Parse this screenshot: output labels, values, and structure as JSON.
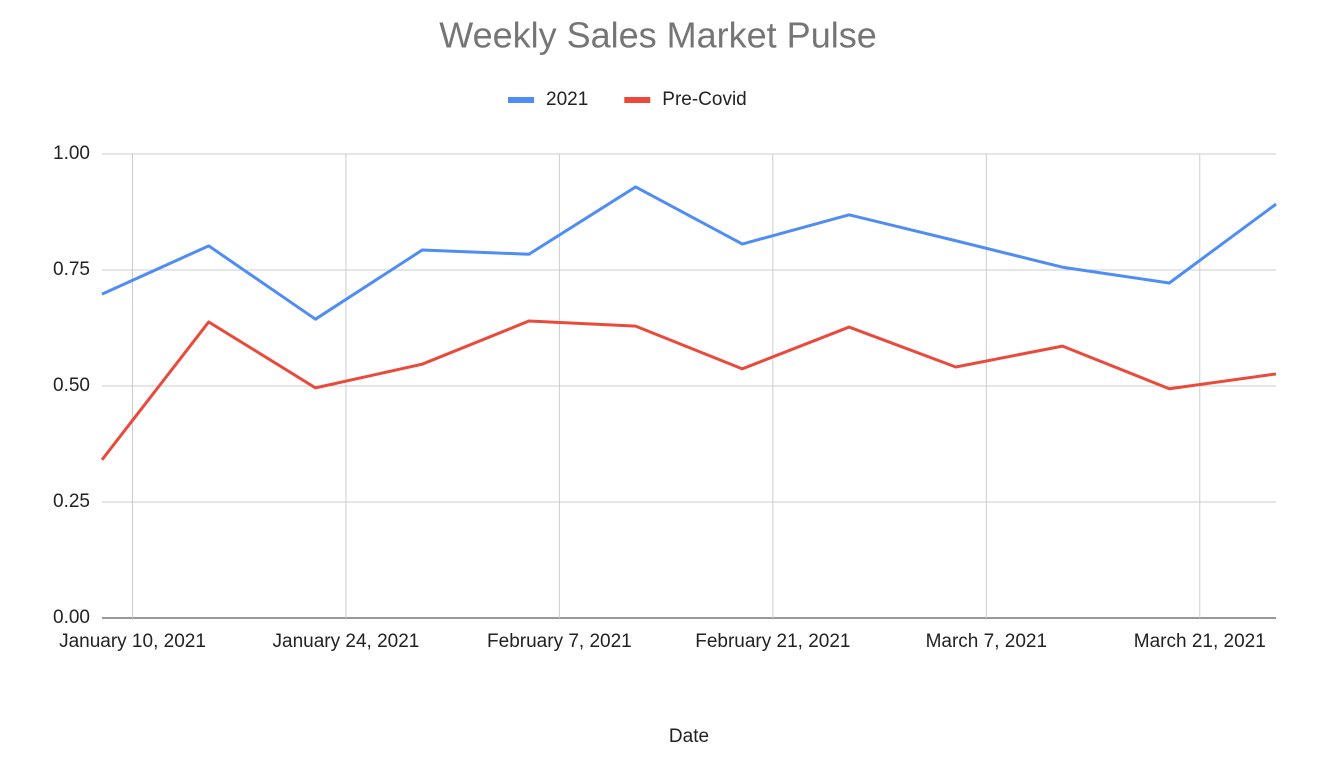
{
  "chart_data": {
    "type": "line",
    "title": "Weekly Sales Market Pulse",
    "x_label": "Date",
    "x": [
      "2021-01-08",
      "2021-01-15",
      "2021-01-22",
      "2021-01-29",
      "2021-02-05",
      "2021-02-12",
      "2021-02-19",
      "2021-02-26",
      "2021-03-05",
      "2021-03-12",
      "2021-03-19",
      "2021-03-26"
    ],
    "series": [
      {
        "name": "2021",
        "color": "#4f8df5",
        "values": [
          0.698,
          0.802,
          0.644,
          0.793,
          0.784,
          0.929,
          0.806,
          0.869,
          0.813,
          0.756,
          0.722,
          0.892
        ]
      },
      {
        "name": "Pre-Covid",
        "color": "#ea4a3c",
        "values": [
          0.341,
          0.638,
          0.496,
          0.547,
          0.64,
          0.629,
          0.537,
          0.627,
          0.541,
          0.586,
          0.494,
          0.526
        ]
      }
    ],
    "xlim": [
      "2021-01-08",
      "2021-03-26"
    ],
    "xticks": [
      {
        "value": "2021-01-10",
        "label": "January 10, 2021"
      },
      {
        "value": "2021-01-24",
        "label": "January 24, 2021"
      },
      {
        "value": "2021-02-07",
        "label": "February 7, 2021"
      },
      {
        "value": "2021-02-21",
        "label": "February 21, 2021"
      },
      {
        "value": "2021-03-07",
        "label": "March 7, 2021"
      },
      {
        "value": "2021-03-21",
        "label": "March 21, 2021"
      }
    ],
    "ylim": [
      0,
      1
    ],
    "yticks": [
      {
        "value": 0,
        "label": "0.00"
      },
      {
        "value": 0.25,
        "label": "0.25"
      },
      {
        "value": 0.5,
        "label": "0.50"
      },
      {
        "value": 0.75,
        "label": "0.75"
      },
      {
        "value": 1,
        "label": "1.00"
      }
    ],
    "grid": true,
    "legend": "top"
  }
}
